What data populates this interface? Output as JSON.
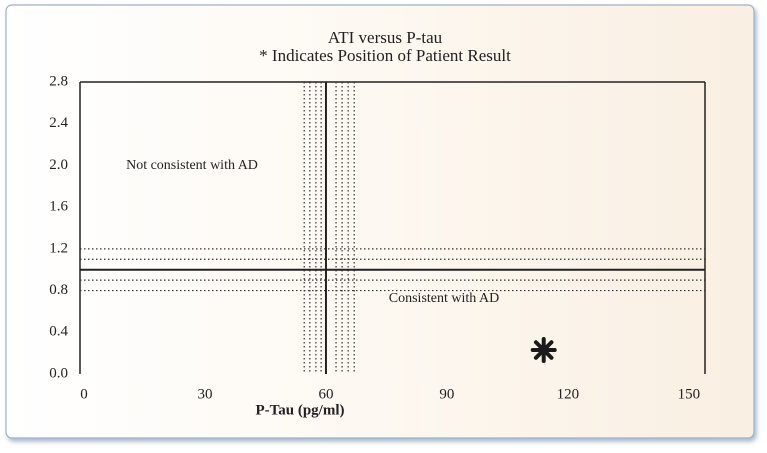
{
  "chart_data": {
    "type": "scatter",
    "title": "ATI versus P-tau",
    "subtitle": "* Indicates Position of Patient Result",
    "xlabel": "P-Tau (pg/ml)",
    "xlim": [
      -1,
      154
    ],
    "ylim": [
      0,
      2.8
    ],
    "xticks": [
      0,
      30,
      60,
      90,
      120,
      150
    ],
    "yticks": [
      2.8,
      2.4,
      {
        "value": 2.0,
        "label": "2.0"
      },
      1.6,
      1.2,
      0.8,
      0.4,
      {
        "value": 0,
        "label": "0.0"
      }
    ],
    "grid": false,
    "x": [
      114
    ],
    "values": [
      0.23
    ],
    "color": "#1a1a1a",
    "cutoff_x": 60,
    "cutoff_x_band": [
      54.6,
      56,
      57.5,
      58.8,
      62.5,
      64,
      65.5,
      67
    ],
    "cutoff_y": 1.0,
    "cutoff_y_band": [
      1.2,
      1.1,
      0.9,
      0.8
    ],
    "annotations": [
      "Not consistent with AD",
      "Consistent with AD"
    ]
  }
}
